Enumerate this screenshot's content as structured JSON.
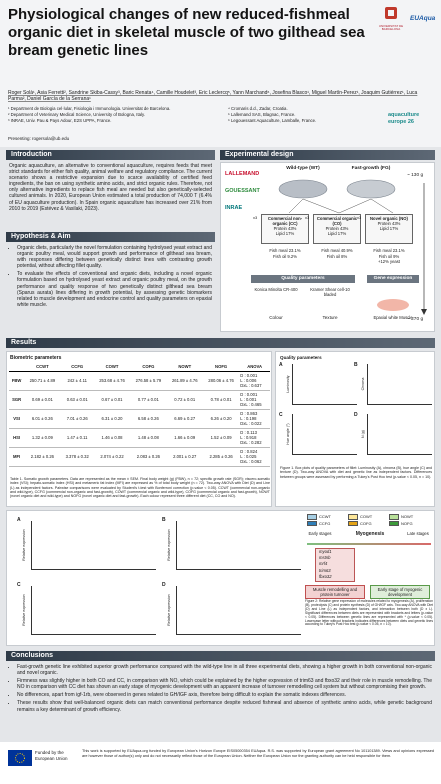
{
  "header": {
    "title": "Physiological changes of new reduced-fishmeal organic diet in skeletal muscle of two gilthead sea bream genetic lines",
    "authors": "Roger Solà¹, Asia Ferretti², Sandrine Skiba-Cassy³, Baric Renata⁴, Camille Houdelet³, Eric Leclercq⁵, Yann Marchand⁶, Josefina Blasco¹, Miguel Martín-Perez¹, Joaquim Gutiérrez¹, Luca Parma², Daniel García de la Serrana¹",
    "affiliations": [
      "¹ Department de Biologia cel·lular, Fisiologia i Immunologia. Universitat de Barcelona.",
      "² Department of Veterinary Medical Science, University of Bologna, Italy.",
      "³ INRAE, Univ. Pau & Pays Adour, E2S UPPA, France.",
      "⁴ Cromaris d.d., Zadar, Croatia.",
      "⁵ Lallemand SAS, Blagnac, France.",
      "⁶ Legouessant Aquaculture, Lamballe, France."
    ],
    "presenting": "Presenting: rogersola@ub.edu",
    "logos": [
      "UNIVERSITAT DE BARCELONA",
      "EUAqua",
      "aquaculture europe 26"
    ]
  },
  "introduction": {
    "heading": "Introduction",
    "text": "Organic aquaculture, an alternative to conventional aquaculture, requires feeds that meet strict standards for either fish quality, animal welfare and regulatory compliance. The current scenario shows a restrictive expansion due to scarce availability of certified feed ingredients, the ban on using synthetic amino acids, and strict organic rules. Therefore, not only alternative ingredients to replace fish meal are needed but also genetically-selected cultured animals. In 2020, European Union estimated a total production of 74,000 T (6.4% of EU aquaculture production). In Spain organic aquaculture has increased over 21% from 2010 to 2019 (Estévez & Vasilaki, 2023)."
  },
  "hypothesis": {
    "heading": "Hypothesis & Aim",
    "bullets": [
      "Organic diets, particularly the novel formulation containing hydrolysed yeast extract and organic poultry meal, would support growth and performance of gilthead sea bream, with responses differing between genetically distinct lines with contrasting growth potential, without affecting fillet quality.",
      "To evaluate the effects of conventional and organic diets, including a novel organic formulation based on hydrolysed yeast extract and organic poultry meal, on the growth performance and quality response of two genetically distinct gilthead sea bream (Sparus aurata) lines differing in growth potential, by assessing genetic biomarkers related to muscle development and endocrine control and quality parameters on epaxial white muscle."
    ]
  },
  "design": {
    "heading": "Experimental design",
    "sponsors": [
      "LALLEMAND",
      "GOUESSANT",
      "INRAE"
    ],
    "lines": [
      "Wild-type (WT)",
      "Fast-growth (FG)"
    ],
    "start_weight": "~ 130 g",
    "end_weight": "~ 270 g",
    "replicates": "x3",
    "diets": [
      {
        "name": "Commercial non-organic (CC)",
        "composition": [
          "Protein 43%",
          "Lipid 17%"
        ],
        "fish": [
          "Fish meal 23.1%",
          "Fish oil 9.2%"
        ]
      },
      {
        "name": "Commercial organic (CO)",
        "composition": [
          "Protein 43%",
          "Lipid 17%"
        ],
        "fish": [
          "Fish meal 40.9%",
          "Fish oil 8%"
        ]
      },
      {
        "name": "Novel organic (NO)",
        "composition": [
          "Protein 43%",
          "Lipid 17%"
        ],
        "fish": [
          "Fish meal 23.1%",
          "Fish oil 9%",
          "+12% yeast"
        ]
      }
    ],
    "quality": {
      "heading": "Quality parameters",
      "items": [
        {
          "device": "Konica Minolta CR-400",
          "label": "Colour"
        },
        {
          "device": "Kramer Shear cell-10 bladed",
          "label": "Texture"
        }
      ]
    },
    "gene": {
      "heading": "Gene expression",
      "label": "Epaxial white Muscle"
    }
  },
  "results": {
    "heading": "Results",
    "table": {
      "title": "Biometric parameters",
      "columns": [
        "CCWT",
        "CCFG",
        "COWT",
        "COFG",
        "NOWT",
        "NOFG",
        "ANOVA"
      ],
      "rows": [
        {
          "name": "FBW",
          "cells": [
            "250.71 ± 4.89",
            "242 ± 4.11",
            "253.68 ± 4.76",
            "276.58 ± 5.79",
            "261.89 ± 4.76",
            "280.06 ± 4.76"
          ],
          "anova": [
            "D : 0.001",
            "L : 0.006",
            "DxL : 0.637"
          ]
        },
        {
          "name": "SGR",
          "cells": [
            "0.69 ± 0.01",
            "0.63 ± 0.01",
            "0.67 ± 0.01",
            "0.77 ± 0.01",
            "0.72 ± 0.01",
            "0.78 ± 0.01"
          ],
          "anova": [
            "D : 0.001",
            "L : 0.001",
            "DxL : 0.465"
          ]
        },
        {
          "name": "VSI",
          "cells": [
            "6.01 ± 0.26",
            "7.01 ± 0.26",
            "6.31 ± 0.20",
            "6.58 ± 0.26",
            "6.69 ± 0.27",
            "6.26 ± 0.20"
          ],
          "anova": [
            "D : 0.863",
            "L : 0.198",
            "DxL : 0.022"
          ]
        },
        {
          "name": "HSI",
          "cells": [
            "1.32 ± 0.09",
            "1.47 ± 0.11",
            "1.46 ± 0.08",
            "1.48 ± 0.08",
            "1.66 ± 0.09",
            "1.52 ± 0.09"
          ],
          "anova": [
            "D : 0.113",
            "L : 0.918",
            "DxL : 0.282"
          ]
        },
        {
          "name": "MFI",
          "cells": [
            "2.182 ± 0.26",
            "3.378 ± 0.32",
            "2.074 ± 0.22",
            "2.083 ± 0.26",
            "2.001 ± 0.27",
            "2.285 ± 0.26"
          ],
          "anova": [
            "D : 0.824",
            "L : 0.025",
            "DxL : 0.062"
          ]
        }
      ],
      "caption": "Table 1. Somatic growth parameters. Data are represented as the mean ± SEM. Final body weight (g) (FBW), n = 72; specific growth rate (SGR); viscero-somatic index (VSI); hepato-somatic index (HSI) and metameric fat index (MFI) are expressed as % of total body weight (n = 72). Two-way ANOVA with Diet (D) and Line (L) as independent factors. Pairwise comparisons were evaluated by Student's t-test with Bonferroni correction (p-value < 0.05). CCWT (commercial non-organic and wild-type), CCFG (commercial non-organic and fast-growth), COWT (commercial organic and wild-type), COFG (commercial organic and fast-growth), NOWT (novel organic diet and wild-type) and NOFG (novel organic diet and fast-growth). Each colour represent three different diet (CC, CO and NO)."
    },
    "figure1": {
      "title": "Quality parameters",
      "panels": [
        "A",
        "B",
        "C",
        "D"
      ],
      "y_labels": [
        "Luminosity",
        "Chroma",
        "Hue angle (°)",
        "N (g)"
      ],
      "caption": "Figure 1. Box plots of quality parameters of fillet: Luminosity (A), chroma (B), hue angle (C) and texture (D). Two-way ANOVA with diet and genetic line as independent factors. Differences between groups were assessed by performing a Tukey's Post Hoc test (p-value < 0.05, n = 10)."
    },
    "figure2": {
      "panels": [
        "A",
        "B",
        "C",
        "D"
      ],
      "y_label": "Relative expression",
      "legend": [
        {
          "name": "CCWT",
          "color": "#a6cee3"
        },
        {
          "name": "COWT",
          "color": "#fde79a"
        },
        {
          "name": "NOWT",
          "color": "#b9e19a"
        },
        {
          "name": "CCFG",
          "color": "#2f7fb8"
        },
        {
          "name": "COFG",
          "color": "#e4a316"
        },
        {
          "name": "NOFG",
          "color": "#3c9a3a"
        }
      ],
      "myogenesis": {
        "early": "Early stages",
        "title": "Myogenesis",
        "late": "Late stages",
        "genes": [
          "myod1",
          "mstnb",
          "mrf4",
          "trim63",
          "fbxo32"
        ],
        "boxes": [
          "Muscle remodelling and protein turnover",
          "Early stage of myogenic development"
        ]
      },
      "caption": "Figure 2: Relative gene expression of molecules related to myogenesis (A), proliferation (B), proteolysis (C) and protein synthesis (D) of GH/IGF axis. Two-way ANOVA with Diet (D) and Line (L) as independent factors, and interaction between both (D x L). Significant differences between diets are represented with brackets and letters (p-value < 0.05). Differences between genetic lines are represented with * (p-value < 0.05). Lowercase letter without brackets indicates differences between diets and genetic lines according to Tukey's Post Hoc test (p-value < 0.05, n = 10)."
    }
  },
  "conclusions": {
    "heading": "Conclusions",
    "bullets": [
      "Fast-growth genetic line exhibited superior growth performance compared with the wild-type line in all three experimental diets, showing a higher growth in both conventional non-organic and novel organic.",
      "Firmness was slightly higher in both CO and CC, in comparison with NO, which could be explained by the higher expression of trim63 and fbxo32 and their role in muscle remodelling. The NO in comparison with CC diet has shown an early stage of myogenic development with an apparent increase of turnover remodelling cell system but without compromising their growth.",
      "No differences, apart from igf-1rb, were observed in genes related to GH/IGF axis, therefore being difficult to explain the somatic indexes differences.",
      "These results show that well-balanced organic diets can match conventional performance despite reduced fishmeal and absence of synthetic amino acids, while genetic background remains a key determinant of growth efficiency."
    ]
  },
  "footer": {
    "funded": "Funded by the European Union",
    "text": "This work is supported by EUAqua.org funded by European Union's Horizon Europe EIS05000354 EUAqua. R.S. was supported by European grant agreement No 101101389. Views and opinions expressed are however those of author(s) only and do not necessarily reflect those of the European Union. Neither the European Union nor the granting authority can be held responsible for them."
  }
}
